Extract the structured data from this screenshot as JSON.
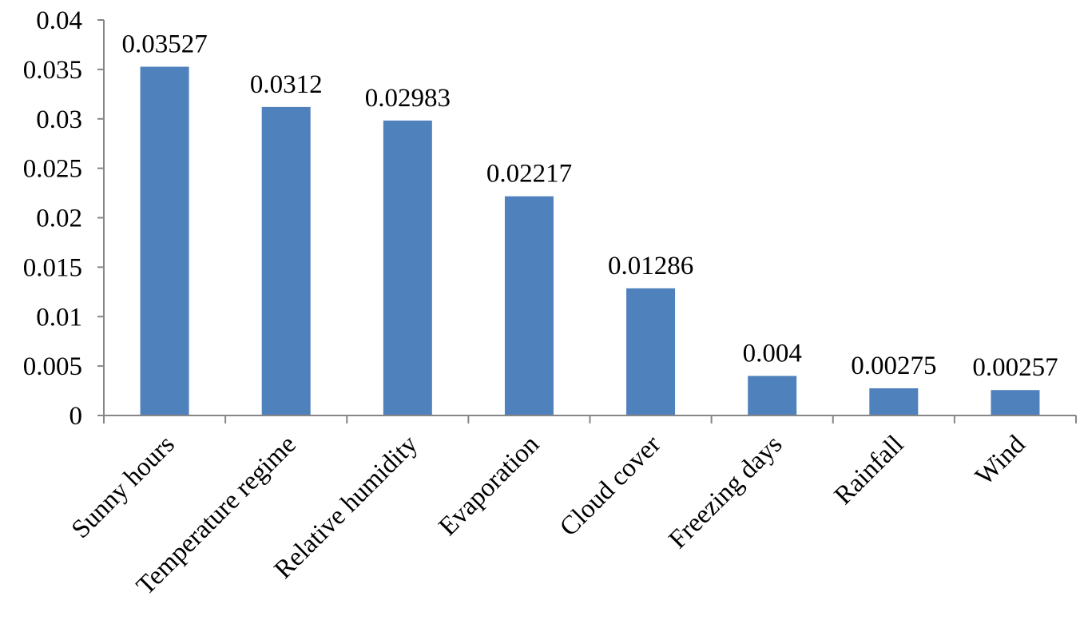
{
  "chart_data": {
    "type": "bar",
    "categories": [
      "Sunny hours",
      "Temperature regime",
      "Relative humidity",
      "Evaporation",
      "Cloud cover",
      "Freezing days",
      "Rainfall",
      "Wind"
    ],
    "values": [
      0.03527,
      0.0312,
      0.02983,
      0.02217,
      0.01286,
      0.004,
      0.00275,
      0.00257
    ],
    "data_labels": [
      "0.03527",
      "0.0312",
      "0.02983",
      "0.02217",
      "0.01286",
      "0.004",
      "0.00275",
      "0.00257"
    ],
    "yticks": [
      "0",
      "0.005",
      "0.01",
      "0.015",
      "0.02",
      "0.025",
      "0.03",
      "0.035",
      "0.04"
    ],
    "ylim": [
      0,
      0.04
    ],
    "title": "",
    "xlabel": "",
    "ylabel": "",
    "grid": false,
    "legend": "none",
    "bar_color": "#4F81BD",
    "axis_color": "#868686"
  }
}
